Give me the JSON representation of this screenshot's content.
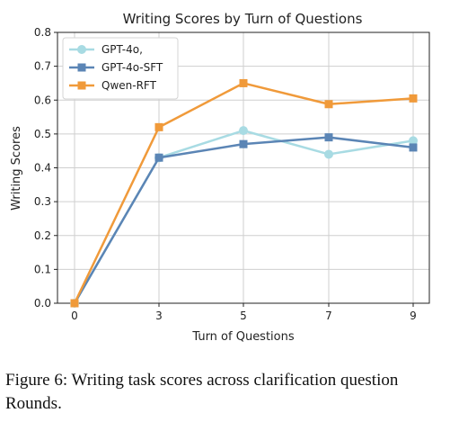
{
  "chart_data": {
    "type": "line",
    "title": "Writing Scores by Turn of Questions",
    "xlabel": "Turn of Questions",
    "ylabel": "Writing Scores",
    "x": [
      0,
      3,
      5,
      7,
      9
    ],
    "x_tick_labels": [
      "0",
      "3",
      "5",
      "7",
      "9"
    ],
    "ylim": [
      0.0,
      0.8
    ],
    "y_tick_labels": [
      "0.0",
      "0.1",
      "0.2",
      "0.3",
      "0.4",
      "0.5",
      "0.6",
      "0.7",
      "0.8"
    ],
    "grid": true,
    "legend_position": "top-left",
    "series": [
      {
        "name": "GPT-4o,",
        "color": "#a8dbe3",
        "marker": "circle",
        "values": [
          0.0,
          0.43,
          0.51,
          0.44,
          0.48
        ]
      },
      {
        "name": "GPT-4o-SFT",
        "color": "#5b85b5",
        "marker": "square",
        "values": [
          0.0,
          0.43,
          0.47,
          0.49,
          0.46
        ]
      },
      {
        "name": "Qwen-RFT",
        "color": "#f09a3a",
        "marker": "square",
        "values": [
          0.0,
          0.52,
          0.65,
          0.588,
          0.605
        ]
      }
    ]
  },
  "caption": "Figure 6: Writing task scores across clarification question Rounds."
}
